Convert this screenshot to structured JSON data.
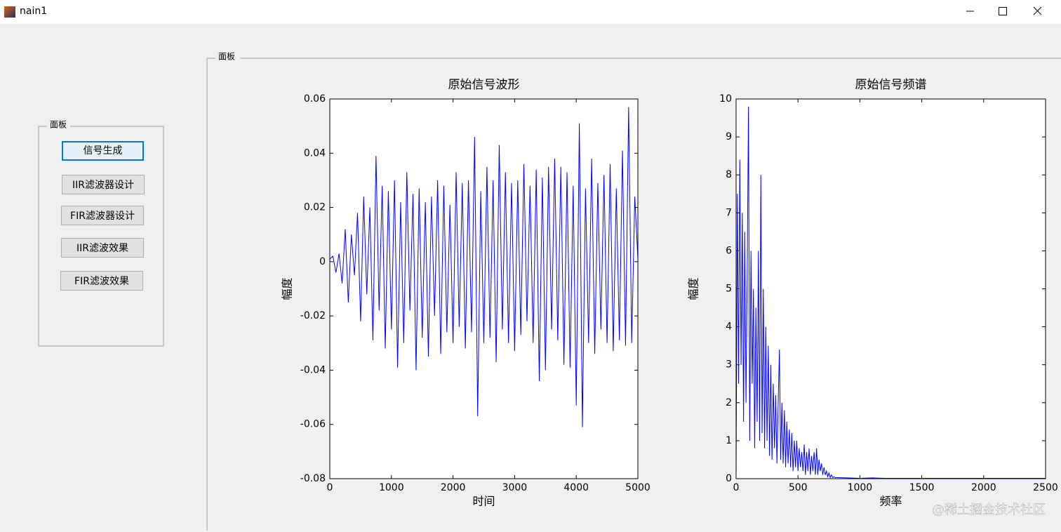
{
  "window": {
    "title": "nain1"
  },
  "panels": [
    {
      "label": "面板",
      "buttons": [
        "信号生成",
        "IIR滤波器设计",
        "FIR滤波器设计",
        "IIR滤波效果",
        "FIR滤波效果"
      ]
    },
    {
      "label": "面板"
    }
  ],
  "watermark": "@稀土掘金技术社区",
  "chart_data": [
    {
      "type": "line",
      "title": "原始信号波形",
      "xlabel": "时间",
      "ylabel": "幅度",
      "xlim": [
        0,
        5000
      ],
      "xticks": [
        0,
        1000,
        2000,
        3000,
        4000,
        5000
      ],
      "ylim": [
        -0.08,
        0.06
      ],
      "yticks": [
        -0.08,
        -0.06,
        -0.04,
        -0.02,
        0,
        0.02,
        0.04,
        0.06
      ],
      "x": [
        0,
        50,
        100,
        150,
        200,
        250,
        300,
        350,
        400,
        450,
        500,
        550,
        600,
        650,
        700,
        750,
        800,
        850,
        900,
        950,
        1000,
        1050,
        1100,
        1150,
        1200,
        1250,
        1300,
        1350,
        1400,
        1450,
        1500,
        1550,
        1600,
        1650,
        1700,
        1750,
        1800,
        1850,
        1900,
        1950,
        2000,
        2050,
        2100,
        2150,
        2200,
        2250,
        2300,
        2350,
        2400,
        2450,
        2500,
        2550,
        2600,
        2650,
        2700,
        2750,
        2800,
        2850,
        2900,
        2950,
        3000,
        3050,
        3100,
        3150,
        3200,
        3250,
        3300,
        3350,
        3400,
        3450,
        3500,
        3550,
        3600,
        3650,
        3700,
        3750,
        3800,
        3850,
        3900,
        3950,
        4000,
        4050,
        4100,
        4150,
        4200,
        4250,
        4300,
        4350,
        4400,
        4450,
        4500,
        4550,
        4600,
        4650,
        4700,
        4750,
        4800,
        4850,
        4900,
        4950,
        5000
      ],
      "series": [
        {
          "color": "#0000ff",
          "values": [
            0.001,
            0.002,
            -0.004,
            0.003,
            -0.008,
            0.012,
            -0.015,
            0.01,
            -0.005,
            0.018,
            -0.022,
            0.024,
            -0.012,
            0.02,
            -0.029,
            0.039,
            -0.018,
            0.028,
            -0.032,
            0.026,
            -0.025,
            0.03,
            -0.039,
            0.022,
            -0.03,
            0.033,
            -0.018,
            0.025,
            -0.04,
            0.027,
            -0.028,
            0.022,
            -0.035,
            0.024,
            -0.02,
            0.03,
            -0.034,
            0.028,
            -0.026,
            0.021,
            -0.03,
            0.033,
            -0.024,
            0.029,
            -0.032,
            0.03,
            -0.026,
            0.046,
            -0.057,
            0.026,
            -0.03,
            0.035,
            -0.028,
            0.03,
            -0.037,
            0.043,
            -0.025,
            0.033,
            -0.03,
            0.029,
            -0.033,
            0.03,
            -0.027,
            0.036,
            -0.022,
            0.028,
            -0.03,
            0.034,
            -0.044,
            0.031,
            -0.04,
            0.035,
            -0.025,
            0.038,
            -0.029,
            0.035,
            -0.038,
            0.033,
            -0.039,
            0.028,
            -0.053,
            0.051,
            -0.061,
            0.027,
            -0.03,
            0.038,
            -0.034,
            0.029,
            -0.025,
            0.032,
            -0.03,
            0.036,
            -0.033,
            0.027,
            -0.029,
            0.041,
            -0.031,
            0.057,
            -0.03,
            0.024,
            0.001
          ]
        }
      ]
    },
    {
      "type": "line",
      "title": "原始信号频谱",
      "xlabel": "频率",
      "ylabel": "幅度",
      "xlim": [
        0,
        2500
      ],
      "xticks": [
        0,
        500,
        1000,
        1500,
        2000,
        2500
      ],
      "ylim": [
        0,
        10
      ],
      "yticks": [
        0,
        1,
        2,
        3,
        4,
        5,
        6,
        7,
        8,
        9,
        10
      ],
      "x": [
        0,
        10,
        20,
        30,
        40,
        50,
        60,
        70,
        80,
        90,
        100,
        110,
        120,
        130,
        140,
        150,
        160,
        170,
        180,
        190,
        200,
        210,
        220,
        230,
        240,
        250,
        260,
        270,
        280,
        290,
        300,
        310,
        320,
        330,
        340,
        350,
        360,
        370,
        380,
        390,
        400,
        410,
        420,
        430,
        440,
        450,
        460,
        470,
        480,
        490,
        500,
        510,
        520,
        530,
        540,
        550,
        560,
        570,
        580,
        590,
        600,
        610,
        620,
        630,
        640,
        650,
        660,
        670,
        680,
        690,
        700,
        710,
        720,
        730,
        740,
        750,
        760,
        770,
        780,
        790,
        800,
        900,
        1000,
        1100,
        1200,
        1300,
        1400,
        1500,
        1600,
        1700,
        1800,
        1900,
        2000,
        2100,
        2200,
        2300,
        2400,
        2500
      ],
      "series": [
        {
          "color": "#0000ff",
          "values": [
            0.1,
            7.5,
            2.5,
            8.4,
            3.0,
            7.0,
            1.5,
            6.5,
            2.0,
            5.5,
            9.8,
            1.0,
            6.0,
            2.5,
            5.0,
            0.8,
            4.5,
            1.5,
            6.0,
            1.0,
            8.0,
            1.2,
            5.0,
            0.8,
            4.0,
            1.0,
            3.5,
            0.6,
            3.0,
            0.5,
            2.5,
            0.8,
            2.2,
            0.4,
            2.0,
            3.4,
            0.5,
            2.0,
            0.4,
            1.8,
            0.3,
            1.5,
            0.4,
            1.3,
            0.3,
            1.2,
            0.2,
            1.0,
            0.3,
            1.0,
            0.2,
            0.8,
            0.3,
            0.7,
            0.2,
            0.9,
            0.1,
            0.7,
            0.2,
            0.8,
            0.1,
            0.6,
            0.2,
            0.7,
            0.1,
            0.8,
            0.1,
            0.5,
            0.2,
            0.4,
            0.1,
            0.3,
            0.1,
            0.2,
            0.05,
            0.15,
            0.03,
            0.1,
            0.03,
            0.05,
            0.03,
            0.02,
            0.01,
            0.02,
            0.01,
            0.01,
            0.01,
            0.01,
            0.01,
            0.01,
            0.01,
            0.01,
            0.01,
            0.01,
            0.01,
            0.01,
            0.01,
            0.01
          ]
        }
      ]
    }
  ]
}
